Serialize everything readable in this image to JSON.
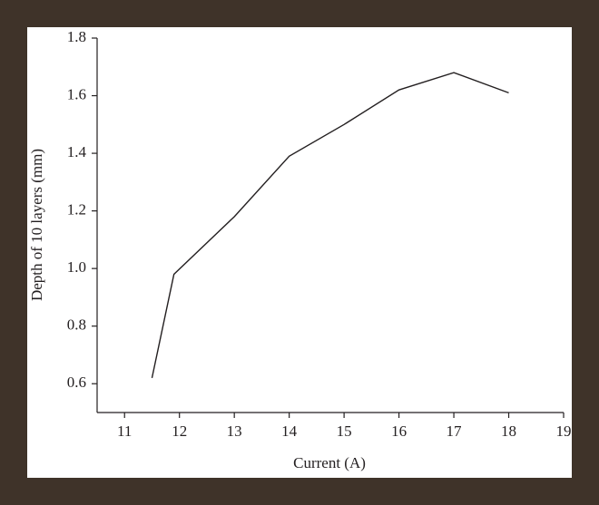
{
  "chart_data": {
    "type": "line",
    "x_label": "Current (A)",
    "y_label": "Depth of 10 layers (mm)",
    "series": [
      {
        "name": "Depth",
        "color": "#231f20",
        "x": [
          11.5,
          11.9,
          13,
          14,
          15,
          16,
          17,
          18
        ],
        "values": [
          0.62,
          0.98,
          1.18,
          1.39,
          1.5,
          1.62,
          1.68,
          1.61
        ]
      }
    ],
    "xlim": [
      10.5,
      19
    ],
    "xticks": [
      11,
      12,
      13,
      14,
      15,
      16,
      17,
      18,
      19
    ],
    "ylim": [
      0.5,
      1.8
    ],
    "yticks": [
      0.6,
      0.8,
      {
        "value": 1,
        "label": "1.0"
      },
      1.2,
      1.4,
      1.6,
      1.8
    ],
    "grid": false
  }
}
